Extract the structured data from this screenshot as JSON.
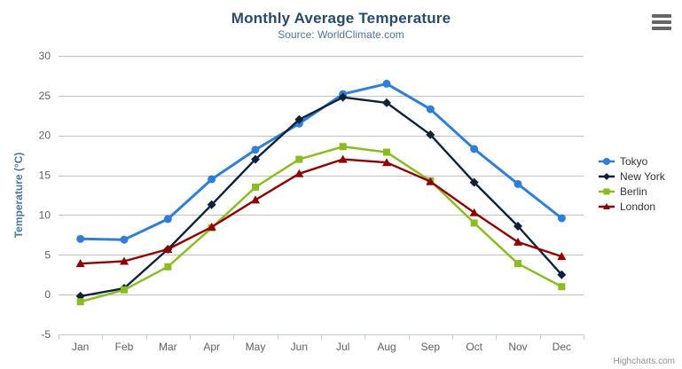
{
  "credits": "Highcharts.com",
  "palette": {
    "title_color": "#274b6d",
    "subtitle_color": "#4d759e",
    "axis_title_color": "#4d759e",
    "axis_label_color": "#606060",
    "grid_line_color": "#c0c0c0",
    "axis_line_color": "#c0d0e0",
    "credits_color": "#909090",
    "menu_icon_color": "#666666"
  },
  "chart_data": {
    "type": "line",
    "title": "Monthly Average Temperature",
    "subtitle": "Source: WorldClimate.com",
    "xlabel": "",
    "ylabel": "Temperature (°C)",
    "ylim": [
      -5,
      30
    ],
    "y_ticks": [
      30,
      25,
      20,
      15,
      10,
      5,
      0,
      -5
    ],
    "grid": true,
    "legend_position": "right",
    "categories": [
      "Jan",
      "Feb",
      "Mar",
      "Apr",
      "May",
      "Jun",
      "Jul",
      "Aug",
      "Sep",
      "Oct",
      "Nov",
      "Dec"
    ],
    "series": [
      {
        "name": "Tokyo",
        "color": "#2f7ed8",
        "marker": "circle",
        "line_width": 3,
        "values": [
          7.0,
          6.9,
          9.5,
          14.5,
          18.2,
          21.5,
          25.2,
          26.5,
          23.3,
          18.3,
          13.9,
          9.6
        ]
      },
      {
        "name": "New York",
        "color": "#0d233a",
        "marker": "diamond",
        "line_width": 2.4,
        "values": [
          -0.2,
          0.8,
          5.7,
          11.3,
          17.0,
          22.0,
          24.8,
          24.1,
          20.1,
          14.1,
          8.6,
          2.5
        ]
      },
      {
        "name": "Berlin",
        "color": "#8bbc21",
        "marker": "square",
        "line_width": 2.5,
        "values": [
          -0.9,
          0.6,
          3.5,
          8.4,
          13.5,
          17.0,
          18.6,
          17.9,
          14.3,
          9.0,
          3.9,
          1.0
        ]
      },
      {
        "name": "London",
        "color": "#910000",
        "marker": "triangle",
        "line_width": 2.4,
        "values": [
          3.9,
          4.2,
          5.7,
          8.5,
          11.9,
          15.2,
          17.0,
          16.6,
          14.2,
          10.3,
          6.6,
          4.8
        ]
      }
    ]
  }
}
